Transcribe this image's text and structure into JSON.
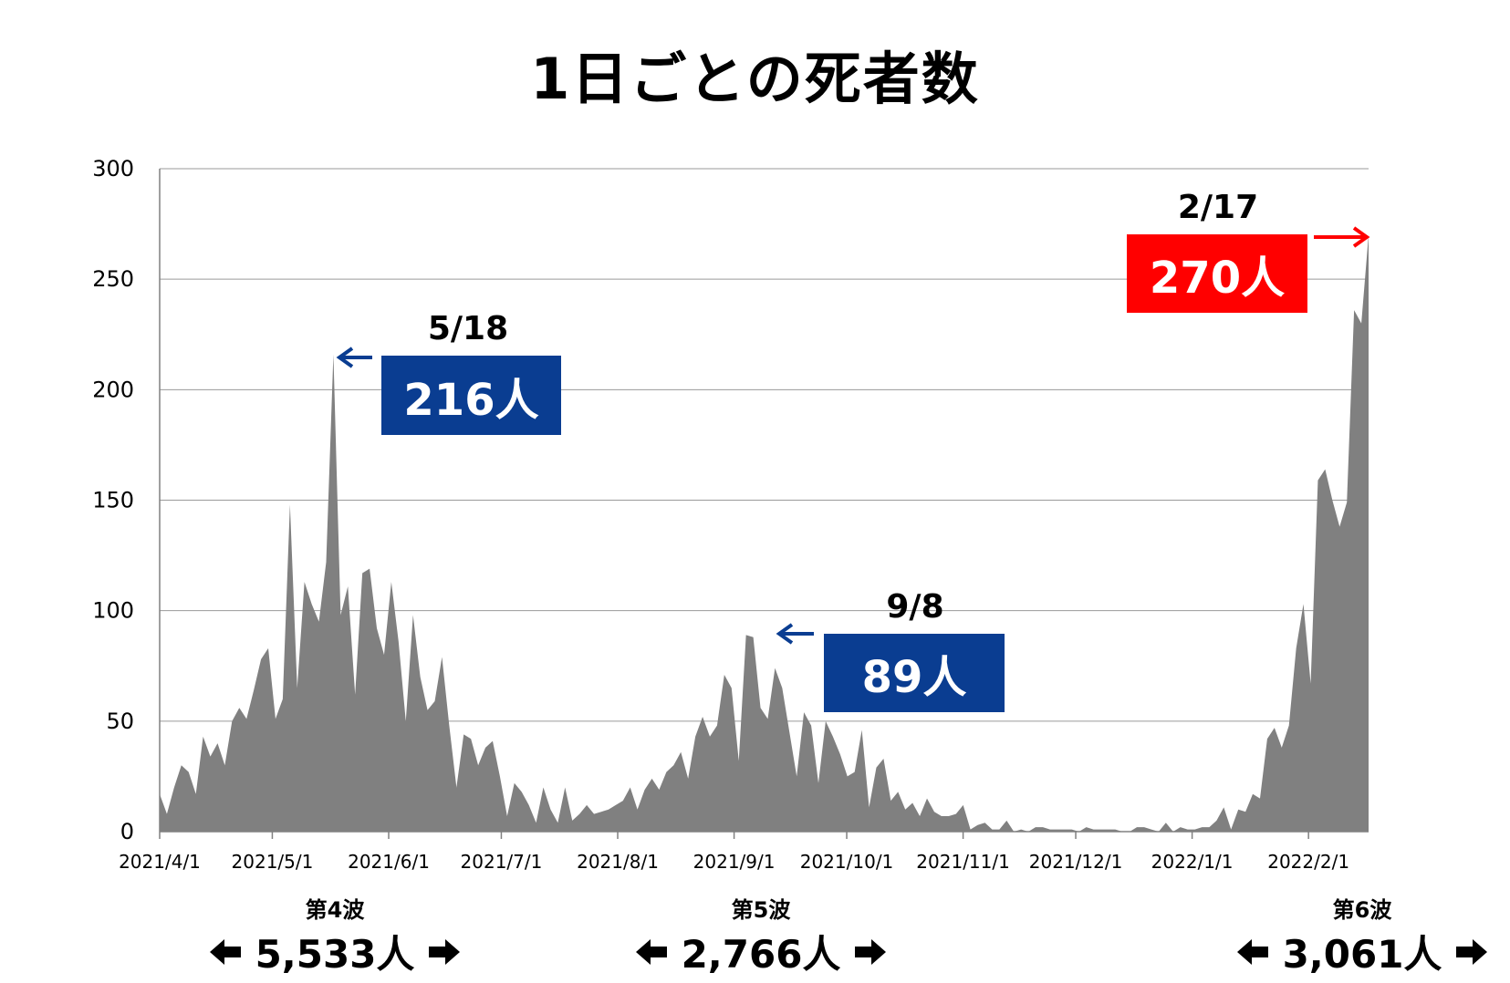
{
  "title": "1日ごとの死者数",
  "chart_data": {
    "type": "area",
    "color": "#808080",
    "ylim": [
      0,
      300
    ],
    "yticks": [
      0,
      50,
      100,
      150,
      200,
      250,
      300
    ],
    "grid": true,
    "x_tick_labels": [
      "2021/4/1",
      "2021/5/1",
      "2021/6/1",
      "2021/7/1",
      "2021/8/1",
      "2021/9/1",
      "2021/10/1",
      "2021/11/1",
      "2021/12/1",
      "2022/1/1",
      "2022/2/1"
    ],
    "x_start": "2021/4/1",
    "x_end": "2022/2/17",
    "values": [
      17,
      8,
      20,
      30,
      27,
      17,
      43,
      34,
      40,
      30,
      50,
      56,
      51,
      64,
      78,
      83,
      51,
      60,
      148,
      65,
      113,
      103,
      95,
      122,
      216,
      98,
      111,
      62,
      117,
      119,
      92,
      80,
      113,
      86,
      50,
      98,
      70,
      55,
      59,
      79,
      48,
      20,
      44,
      42,
      30,
      38,
      41,
      25,
      7,
      22,
      18,
      12,
      4,
      20,
      10,
      4,
      20,
      5,
      8,
      12,
      8,
      9,
      10,
      12,
      14,
      20,
      10,
      19,
      24,
      19,
      27,
      30,
      36,
      24,
      43,
      52,
      43,
      48,
      71,
      65,
      32,
      89,
      88,
      56,
      51,
      74,
      65,
      45,
      25,
      54,
      48,
      22,
      50,
      43,
      35,
      25,
      27,
      46,
      11,
      29,
      33,
      14,
      18,
      10,
      13,
      7,
      15,
      9,
      7,
      7,
      8,
      12,
      1,
      3,
      4,
      1,
      1,
      5,
      0,
      1,
      0,
      2,
      2,
      1,
      1,
      1,
      1,
      0,
      2,
      1,
      1,
      1,
      1,
      0,
      0,
      2,
      2,
      1,
      0,
      4,
      0,
      2,
      1,
      1,
      2,
      2,
      5,
      11,
      1,
      10,
      9,
      17,
      15,
      42,
      47,
      38,
      48,
      83,
      103,
      67,
      159,
      164,
      150,
      138,
      149,
      236,
      230,
      270
    ],
    "annotations": [
      {
        "date": "5/18",
        "value_label": "216人",
        "color": "#0a3d91"
      },
      {
        "date": "9/8",
        "value_label": "89人",
        "color": "#0a3d91"
      },
      {
        "date": "2/17",
        "value_label": "270人",
        "color": "#ff0000"
      }
    ]
  },
  "waves": [
    {
      "name": "第4波",
      "total": "5,533人"
    },
    {
      "name": "第5波",
      "total": "2,766人"
    },
    {
      "name": "第6波",
      "total": "3,061人"
    }
  ]
}
